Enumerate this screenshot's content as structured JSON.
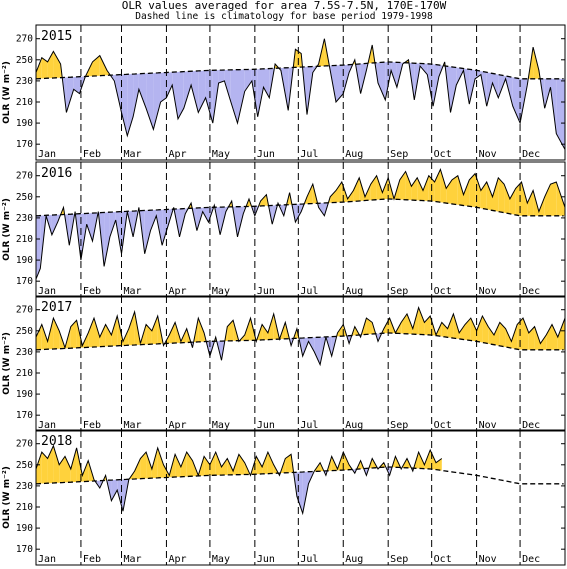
{
  "title": "OLR values averaged for area 7.5S-7.5N, 170E-170W",
  "subtitle": "Dashed line is climatology for base period 1979-1998",
  "ylabel": "OLR (W m⁻²)",
  "colors": {
    "above": "#FFD23C",
    "below": "#B4B4F0",
    "line": "#000000"
  },
  "chart_data": [
    {
      "type": "area",
      "panel": "2015",
      "months": [
        "Jan",
        "Feb",
        "Mar",
        "Apr",
        "May",
        "Jun",
        "Jul",
        "Aug",
        "Sep",
        "Oct",
        "Nov",
        "Dec"
      ],
      "yticks": [
        170,
        190,
        210,
        230,
        250,
        270
      ],
      "ylim": [
        155,
        283
      ],
      "xlim": [
        1,
        366
      ],
      "climatology": {
        "x": [
          1,
          32,
          60,
          91,
          121,
          152,
          182,
          213,
          244,
          274,
          305,
          335,
          366
        ],
        "y": [
          232,
          234,
          236,
          238,
          240,
          241,
          243,
          245,
          248,
          246,
          240,
          232,
          232
        ]
      },
      "olr": {
        "x": [
          1,
          5,
          9,
          13,
          18,
          22,
          27,
          31,
          35,
          40,
          45,
          50,
          55,
          60,
          64,
          68,
          72,
          77,
          82,
          87,
          91,
          95,
          99,
          103,
          108,
          113,
          118,
          123,
          127,
          131,
          135,
          140,
          145,
          150,
          154,
          158,
          162,
          166,
          170,
          175,
          180,
          184,
          188,
          192,
          196,
          200,
          204,
          208,
          213,
          217,
          221,
          225,
          229,
          233,
          237,
          242,
          246,
          250,
          254,
          258,
          262,
          266,
          271,
          275,
          279,
          283,
          287,
          291,
          296,
          300,
          304,
          308,
          312,
          316,
          320,
          325,
          330,
          335,
          340,
          344,
          348,
          352,
          356,
          360,
          366
        ],
        "y": [
          238,
          252,
          248,
          258,
          246,
          200,
          222,
          218,
          234,
          248,
          254,
          240,
          230,
          200,
          178,
          196,
          222,
          204,
          184,
          210,
          214,
          226,
          194,
          204,
          226,
          200,
          214,
          190,
          228,
          230,
          212,
          190,
          220,
          230,
          196,
          224,
          214,
          246,
          240,
          202,
          260,
          256,
          198,
          238,
          246,
          270,
          240,
          210,
          218,
          238,
          250,
          218,
          240,
          264,
          228,
          212,
          240,
          224,
          246,
          250,
          212,
          244,
          236,
          206,
          234,
          248,
          200,
          226,
          240,
          208,
          232,
          236,
          206,
          228,
          214,
          232,
          206,
          190,
          226,
          262,
          240,
          204,
          224,
          180,
          165
        ]
      }
    },
    {
      "type": "area",
      "panel": "2016",
      "months": [
        "Jan",
        "Feb",
        "Mar",
        "Apr",
        "May",
        "Jun",
        "Jul",
        "Aug",
        "Sep",
        "Oct",
        "Nov",
        "Dec"
      ],
      "yticks": [
        170,
        190,
        210,
        230,
        250,
        270
      ],
      "ylim": [
        155,
        283
      ],
      "xlim": [
        1,
        366
      ],
      "climatology": {
        "x": [
          1,
          32,
          60,
          91,
          121,
          152,
          182,
          213,
          244,
          274,
          305,
          335,
          366
        ],
        "y": [
          232,
          234,
          236,
          238,
          240,
          241,
          243,
          245,
          248,
          246,
          240,
          232,
          232
        ]
      },
      "olr": {
        "x": [
          1,
          4,
          8,
          12,
          16,
          20,
          24,
          28,
          32,
          36,
          40,
          44,
          48,
          52,
          56,
          60,
          64,
          68,
          72,
          76,
          80,
          84,
          88,
          92,
          96,
          100,
          104,
          108,
          112,
          116,
          120,
          124,
          128,
          132,
          136,
          140,
          144,
          148,
          152,
          156,
          160,
          164,
          168,
          172,
          176,
          180,
          184,
          188,
          192,
          196,
          200,
          204,
          208,
          212,
          216,
          220,
          224,
          228,
          232,
          236,
          240,
          244,
          248,
          252,
          256,
          260,
          264,
          268,
          272,
          276,
          280,
          284,
          288,
          292,
          296,
          300,
          304,
          308,
          312,
          316,
          320,
          324,
          328,
          332,
          336,
          340,
          344,
          348,
          352,
          356,
          360,
          366
        ],
        "y": [
          172,
          182,
          232,
          214,
          226,
          240,
          204,
          236,
          190,
          224,
          208,
          236,
          184,
          212,
          228,
          196,
          236,
          212,
          240,
          196,
          218,
          232,
          204,
          222,
          240,
          212,
          234,
          244,
          218,
          236,
          226,
          242,
          214,
          236,
          246,
          212,
          234,
          248,
          232,
          246,
          252,
          224,
          244,
          232,
          254,
          226,
          236,
          250,
          262,
          240,
          232,
          250,
          256,
          264,
          248,
          256,
          268,
          250,
          262,
          270,
          254,
          268,
          248,
          266,
          274,
          260,
          268,
          256,
          270,
          264,
          276,
          258,
          266,
          270,
          252,
          266,
          272,
          256,
          264,
          250,
          268,
          262,
          248,
          258,
          264,
          244,
          256,
          236,
          250,
          262,
          264,
          240
        ]
      }
    },
    {
      "type": "area",
      "panel": "2017",
      "months": [
        "Jan",
        "Feb",
        "Mar",
        "Apr",
        "May",
        "Jun",
        "Jul",
        "Aug",
        "Sep",
        "Oct",
        "Nov",
        "Dec"
      ],
      "yticks": [
        170,
        190,
        210,
        230,
        250,
        270
      ],
      "ylim": [
        155,
        283
      ],
      "xlim": [
        1,
        366
      ],
      "climatology": {
        "x": [
          1,
          32,
          60,
          91,
          121,
          152,
          182,
          213,
          244,
          274,
          305,
          335,
          366
        ],
        "y": [
          232,
          234,
          236,
          238,
          240,
          241,
          243,
          245,
          248,
          246,
          240,
          232,
          232
        ]
      },
      "olr": {
        "x": [
          1,
          5,
          9,
          13,
          17,
          21,
          25,
          29,
          33,
          37,
          41,
          45,
          49,
          53,
          57,
          61,
          65,
          69,
          73,
          77,
          81,
          85,
          89,
          93,
          97,
          101,
          105,
          109,
          113,
          117,
          121,
          125,
          129,
          133,
          137,
          141,
          145,
          149,
          153,
          157,
          161,
          165,
          169,
          173,
          177,
          181,
          185,
          189,
          193,
          197,
          201,
          205,
          209,
          213,
          217,
          221,
          225,
          229,
          233,
          237,
          241,
          245,
          249,
          253,
          257,
          261,
          265,
          269,
          273,
          277,
          281,
          285,
          289,
          293,
          297,
          301,
          305,
          309,
          313,
          317,
          321,
          325,
          329,
          333,
          337,
          341,
          345,
          349,
          353,
          357,
          361,
          366
        ],
        "y": [
          244,
          256,
          240,
          262,
          250,
          234,
          254,
          260,
          236,
          248,
          262,
          244,
          256,
          246,
          264,
          240,
          252,
          268,
          238,
          256,
          250,
          264,
          236,
          246,
          258,
          240,
          252,
          234,
          262,
          248,
          226,
          244,
          222,
          254,
          260,
          240,
          246,
          262,
          240,
          256,
          248,
          266,
          242,
          258,
          236,
          252,
          226,
          240,
          230,
          218,
          244,
          226,
          248,
          256,
          238,
          254,
          244,
          262,
          258,
          240,
          252,
          262,
          248,
          258,
          266,
          252,
          272,
          258,
          264,
          246,
          258,
          252,
          266,
          248,
          256,
          262,
          250,
          264,
          254,
          246,
          258,
          252,
          240,
          256,
          262,
          248,
          254,
          238,
          246,
          256,
          244,
          262
        ]
      }
    },
    {
      "type": "area",
      "panel": "2018",
      "months": [
        "Jan",
        "Feb",
        "Mar",
        "Apr",
        "May",
        "Jun",
        "Jul",
        "Aug",
        "Sep",
        "Oct",
        "Nov",
        "Dec"
      ],
      "yticks": [
        170,
        190,
        210,
        230,
        250,
        270
      ],
      "ylim": [
        155,
        283
      ],
      "xlim": [
        1,
        366
      ],
      "climatology": {
        "x": [
          1,
          32,
          60,
          91,
          121,
          152,
          182,
          213,
          244,
          274,
          305,
          335,
          366
        ],
        "y": [
          232,
          234,
          236,
          238,
          240,
          241,
          243,
          245,
          248,
          246,
          240,
          232,
          232
        ]
      },
      "olr": {
        "x": [
          1,
          5,
          9,
          13,
          17,
          21,
          25,
          29,
          33,
          37,
          41,
          45,
          49,
          53,
          57,
          61,
          65,
          69,
          73,
          77,
          81,
          85,
          89,
          93,
          97,
          101,
          105,
          109,
          113,
          117,
          121,
          125,
          129,
          133,
          137,
          141,
          145,
          149,
          153,
          157,
          161,
          165,
          169,
          173,
          177,
          181,
          185,
          189,
          193,
          197,
          201,
          205,
          209,
          213,
          217,
          221,
          225,
          229,
          233,
          237,
          241,
          245,
          249,
          253,
          257,
          261,
          265,
          269,
          273,
          277,
          281
        ],
        "y": [
          246,
          262,
          256,
          268,
          250,
          258,
          246,
          266,
          240,
          254,
          236,
          228,
          240,
          216,
          226,
          206,
          236,
          244,
          256,
          262,
          246,
          266,
          250,
          240,
          260,
          248,
          262,
          254,
          240,
          258,
          250,
          262,
          248,
          256,
          244,
          260,
          252,
          240,
          258,
          248,
          262,
          250,
          240,
          256,
          260,
          220,
          204,
          232,
          244,
          252,
          240,
          258,
          246,
          262,
          250,
          242,
          254,
          240,
          256,
          246,
          252,
          240,
          258,
          246,
          256,
          244,
          262,
          250,
          264,
          252,
          256
        ]
      }
    }
  ]
}
